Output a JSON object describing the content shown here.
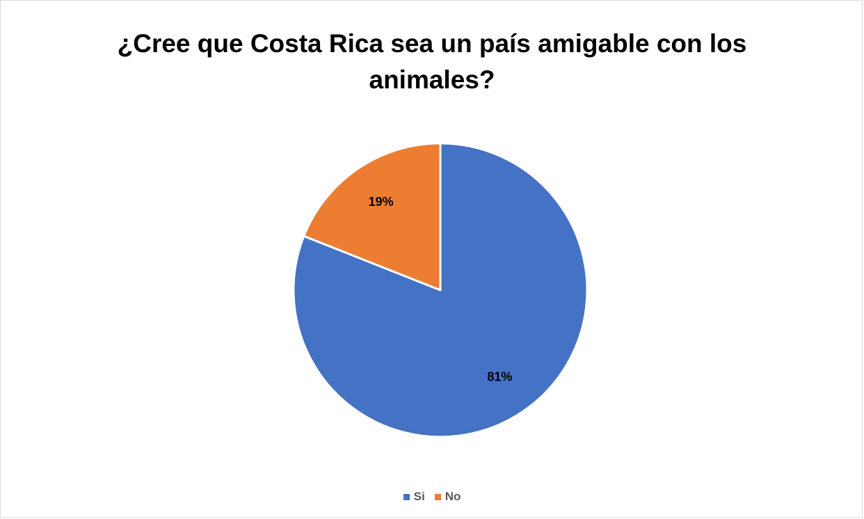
{
  "chart_data": {
    "type": "pie",
    "title_lines": [
      "¿Cree que Costa Rica sea un país amigable con los",
      "animales?"
    ],
    "categories": [
      "Si",
      "No"
    ],
    "values": [
      81,
      19
    ],
    "data_labels": [
      "81%",
      "19%"
    ],
    "colors": [
      "#4472C4",
      "#ED7D31"
    ],
    "start": "12 o'clock, clockwise",
    "legend_position": "bottom"
  }
}
